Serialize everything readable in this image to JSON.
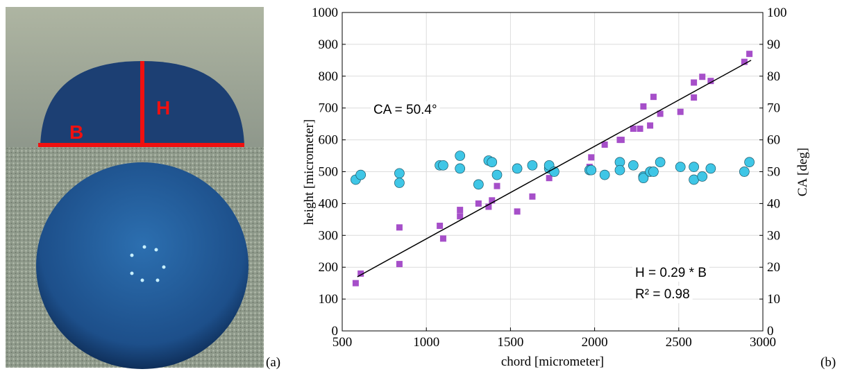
{
  "photo": {
    "width_label": "B",
    "height_label": "H",
    "panel_label": "(a)"
  },
  "chart_data": {
    "type": "scatter",
    "panel_label": "(b)",
    "xlabel": "chord [micrometer]",
    "ylabel": "height [micrometer]",
    "y2label": "CA [deg]",
    "xlim": [
      500,
      3000
    ],
    "xticks": [
      500,
      1000,
      1500,
      2000,
      2500,
      3000
    ],
    "ylim": [
      0,
      1000
    ],
    "yticks": [
      0,
      100,
      200,
      300,
      400,
      500,
      600,
      700,
      800,
      900,
      1000
    ],
    "y2lim": [
      0,
      100
    ],
    "y2ticks": [
      0,
      10,
      20,
      30,
      40,
      50,
      60,
      70,
      80,
      90,
      100
    ],
    "grid": true,
    "annotations": [
      "CA = 50.4°",
      "H = 0.29 * B",
      "R² = 0.98"
    ],
    "series": [
      {
        "marker": "square",
        "color": "#a64fc9",
        "x": [
          580,
          610,
          840,
          840,
          1080,
          1100,
          1200,
          1200,
          1310,
          1370,
          1390,
          1420,
          1540,
          1630,
          1730,
          1970,
          1980,
          2060,
          2150,
          2160,
          2230,
          2270,
          2290,
          2330,
          2350,
          2390,
          2510,
          2590,
          2590,
          2640,
          2690,
          2890,
          2920
        ],
        "values": [
          150,
          180,
          325,
          210,
          330,
          290,
          380,
          360,
          400,
          390,
          410,
          455,
          375,
          422,
          480,
          515,
          545,
          585,
          600,
          600,
          635,
          635,
          705,
          645,
          735,
          682,
          688,
          780,
          733,
          798,
          785,
          845,
          870
        ]
      },
      {
        "marker": "circle",
        "color": "#3fc6e6",
        "axis": "y2",
        "x": [
          580,
          610,
          840,
          840,
          1080,
          1100,
          1200,
          1200,
          1310,
          1370,
          1390,
          1420,
          1540,
          1630,
          1730,
          1730,
          1760,
          1970,
          1980,
          2060,
          2150,
          2150,
          2230,
          2290,
          2290,
          2330,
          2350,
          2390,
          2510,
          2590,
          2590,
          2640,
          2690,
          2890,
          2920
        ],
        "values": [
          47.5,
          49,
          49.5,
          46.5,
          52,
          52,
          55,
          51,
          46,
          53.5,
          53,
          49,
          51,
          52,
          51,
          52,
          50,
          50.5,
          50.5,
          49,
          53,
          50.5,
          52,
          48.5,
          48,
          50,
          50,
          53,
          51.5,
          51.5,
          47.5,
          48.5,
          51,
          50,
          53
        ]
      },
      {
        "marker": "line",
        "color": "#000000",
        "x": [
          590,
          2930
        ],
        "values": [
          170,
          850
        ]
      }
    ]
  }
}
